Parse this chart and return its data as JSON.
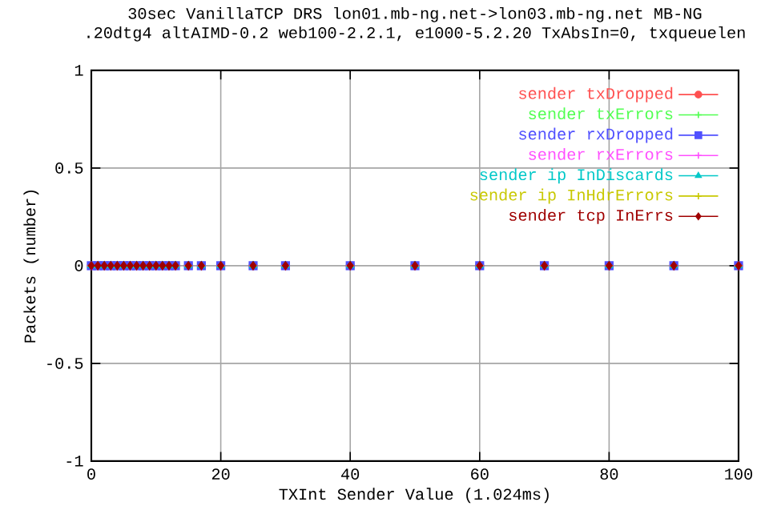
{
  "chart_data": {
    "type": "scatter",
    "title": "30sec VanillaTCP DRS lon01.mb-ng.net->lon03.mb-ng.net MB-NG",
    "subtitle": ".20dtg4 altAIMD-0.2 web100-2.2.1, e1000-5.2.20 TxAbsIn=0, txqueuelen",
    "xlabel": "TXInt Sender Value (1.024ms)",
    "ylabel": "Packets (number)",
    "x": [
      0,
      1,
      2,
      3,
      4,
      5,
      6,
      7,
      8,
      9,
      10,
      11,
      12,
      13,
      15,
      17,
      20,
      25,
      30,
      40,
      50,
      60,
      70,
      80,
      90,
      100
    ],
    "series": [
      {
        "name": "sender txDropped",
        "color": "#ff5050",
        "marker": "circle",
        "values": [
          0,
          0,
          0,
          0,
          0,
          0,
          0,
          0,
          0,
          0,
          0,
          0,
          0,
          0,
          0,
          0,
          0,
          0,
          0,
          0,
          0,
          0,
          0,
          0,
          0,
          0
        ]
      },
      {
        "name": "sender txErrors",
        "color": "#50ff50",
        "marker": "cross",
        "values": [
          null,
          null,
          null,
          null,
          null,
          null,
          null,
          null,
          null,
          null,
          null,
          null,
          null,
          null,
          null,
          null,
          null,
          null,
          null,
          null,
          null,
          null,
          null,
          null,
          null,
          null
        ]
      },
      {
        "name": "sender rxDropped",
        "color": "#5050ff",
        "marker": "square",
        "values": [
          0,
          0,
          0,
          0,
          0,
          0,
          0,
          0,
          0,
          0,
          0,
          0,
          0,
          0,
          0,
          0,
          0,
          0,
          0,
          0,
          0,
          0,
          0,
          0,
          0,
          0
        ]
      },
      {
        "name": "sender rxErrors",
        "color": "#ff50ff",
        "marker": "cross",
        "values": [
          0,
          null,
          null,
          null,
          0,
          0,
          0,
          0,
          0,
          null,
          null,
          null,
          null,
          0,
          0,
          0,
          0,
          0,
          0,
          0,
          0,
          0,
          0,
          0,
          0,
          0
        ]
      },
      {
        "name": "sender ip InDiscards",
        "color": "#00c8c8",
        "marker": "triangle",
        "values": [
          0,
          0,
          0,
          0,
          0,
          0,
          0,
          0,
          0,
          0,
          0,
          0,
          0,
          0,
          0,
          0,
          0,
          0,
          0,
          0,
          0,
          0,
          0,
          0,
          0,
          0
        ]
      },
      {
        "name": "sender ip InHdrErrors",
        "color": "#c8c800",
        "marker": "cross",
        "values": [
          0,
          0,
          0,
          0,
          0,
          0,
          0,
          0,
          0,
          0,
          0,
          0,
          null,
          0,
          0,
          0,
          0,
          0,
          0,
          0,
          0,
          0,
          0,
          0,
          0,
          0
        ]
      },
      {
        "name": "sender tcp InErrs",
        "color": "#a00000",
        "marker": "diamond",
        "values": [
          0,
          0,
          0,
          0,
          0,
          0,
          0,
          0,
          0,
          0,
          0,
          0,
          0,
          0,
          0,
          0,
          0,
          0,
          0,
          0,
          0,
          0,
          0,
          0,
          0,
          0
        ]
      }
    ],
    "xlim": [
      0,
      100
    ],
    "xticks": [
      0,
      20,
      40,
      60,
      80,
      100
    ],
    "ylim": [
      -1,
      1
    ],
    "yticks": [
      -1,
      -0.5,
      0,
      0.5,
      1
    ],
    "grid": true,
    "legend": "top right"
  }
}
